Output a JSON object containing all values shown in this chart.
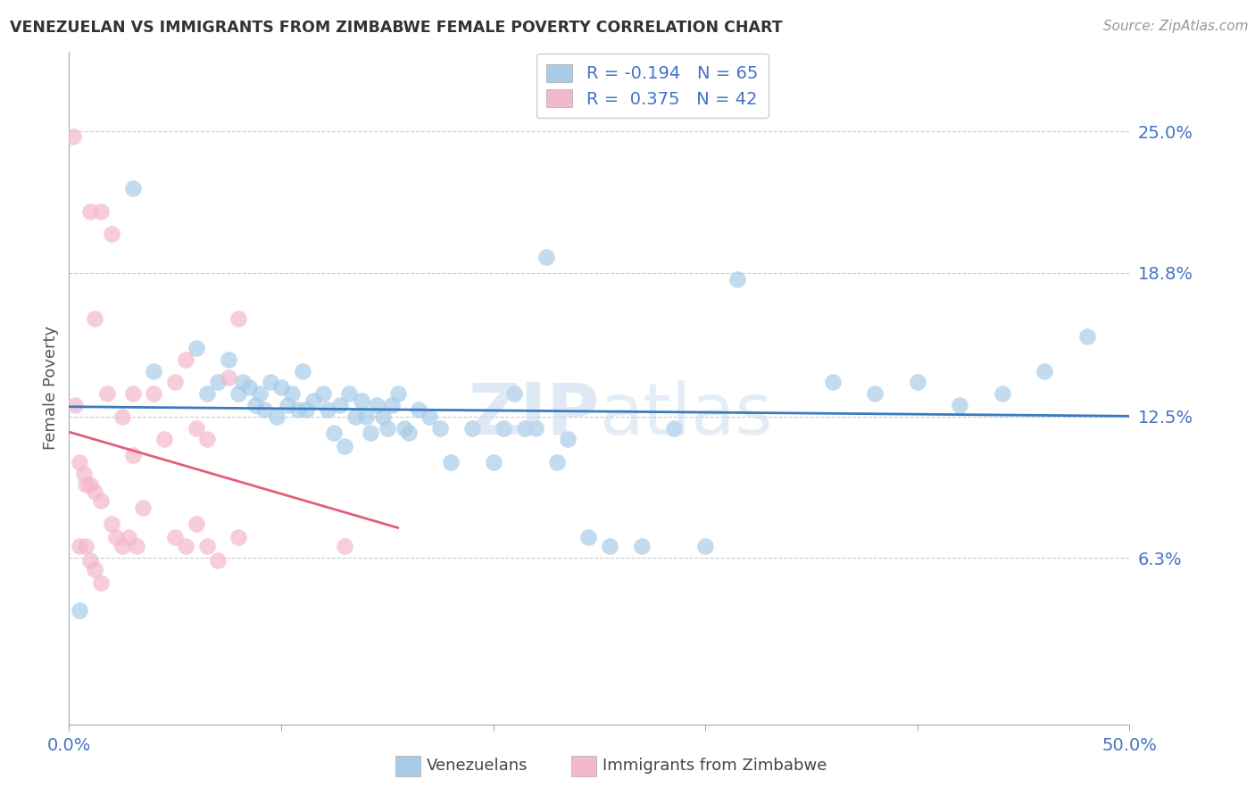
{
  "title": "VENEZUELAN VS IMMIGRANTS FROM ZIMBABWE FEMALE POVERTY CORRELATION CHART",
  "source": "Source: ZipAtlas.com",
  "ylabel": "Female Poverty",
  "ytick_labels": [
    "25.0%",
    "18.8%",
    "12.5%",
    "6.3%"
  ],
  "ytick_values": [
    0.25,
    0.188,
    0.125,
    0.063
  ],
  "xmin": 0.0,
  "xmax": 0.5,
  "ymin": -0.01,
  "ymax": 0.285,
  "blue_color": "#a8cce8",
  "pink_color": "#f4b8cc",
  "line_blue_color": "#3a7bbf",
  "line_pink_color": "#e0607a",
  "blue_scatter_x": [
    0.005,
    0.03,
    0.04,
    0.06,
    0.065,
    0.07,
    0.075,
    0.08,
    0.082,
    0.085,
    0.088,
    0.09,
    0.092,
    0.095,
    0.098,
    0.1,
    0.103,
    0.105,
    0.108,
    0.11,
    0.112,
    0.115,
    0.12,
    0.122,
    0.125,
    0.128,
    0.13,
    0.132,
    0.135,
    0.138,
    0.14,
    0.142,
    0.145,
    0.148,
    0.15,
    0.152,
    0.155,
    0.158,
    0.16,
    0.165,
    0.17,
    0.175,
    0.18,
    0.19,
    0.2,
    0.205,
    0.21,
    0.215,
    0.22,
    0.225,
    0.23,
    0.235,
    0.245,
    0.255,
    0.27,
    0.285,
    0.3,
    0.315,
    0.36,
    0.38,
    0.4,
    0.42,
    0.44,
    0.46,
    0.48
  ],
  "blue_scatter_y": [
    0.04,
    0.225,
    0.145,
    0.155,
    0.135,
    0.14,
    0.15,
    0.135,
    0.14,
    0.138,
    0.13,
    0.135,
    0.128,
    0.14,
    0.125,
    0.138,
    0.13,
    0.135,
    0.128,
    0.145,
    0.128,
    0.132,
    0.135,
    0.128,
    0.118,
    0.13,
    0.112,
    0.135,
    0.125,
    0.132,
    0.125,
    0.118,
    0.13,
    0.125,
    0.12,
    0.13,
    0.135,
    0.12,
    0.118,
    0.128,
    0.125,
    0.12,
    0.105,
    0.12,
    0.105,
    0.12,
    0.135,
    0.12,
    0.12,
    0.195,
    0.105,
    0.115,
    0.072,
    0.068,
    0.068,
    0.12,
    0.068,
    0.185,
    0.14,
    0.135,
    0.14,
    0.13,
    0.135,
    0.145,
    0.16
  ],
  "pink_scatter_x": [
    0.003,
    0.005,
    0.007,
    0.008,
    0.01,
    0.012,
    0.015,
    0.018,
    0.02,
    0.022,
    0.025,
    0.028,
    0.03,
    0.032,
    0.035,
    0.04,
    0.045,
    0.05,
    0.055,
    0.06,
    0.065,
    0.07,
    0.075,
    0.08,
    0.01,
    0.012,
    0.015,
    0.02,
    0.025,
    0.03,
    0.005,
    0.008,
    0.01,
    0.012,
    0.015,
    0.05,
    0.055,
    0.06,
    0.065,
    0.08,
    0.13,
    0.002
  ],
  "pink_scatter_y": [
    0.13,
    0.105,
    0.1,
    0.095,
    0.095,
    0.092,
    0.088,
    0.135,
    0.078,
    0.072,
    0.068,
    0.072,
    0.135,
    0.068,
    0.085,
    0.135,
    0.115,
    0.072,
    0.068,
    0.078,
    0.068,
    0.062,
    0.142,
    0.168,
    0.215,
    0.168,
    0.215,
    0.205,
    0.125,
    0.108,
    0.068,
    0.068,
    0.062,
    0.058,
    0.052,
    0.14,
    0.15,
    0.12,
    0.115,
    0.072,
    0.068,
    0.248
  ]
}
